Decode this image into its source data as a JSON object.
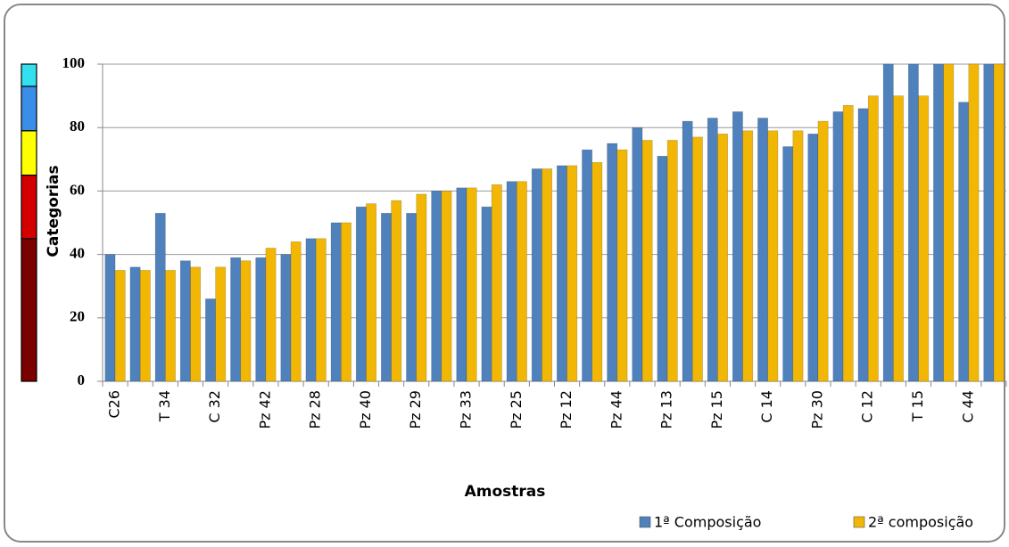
{
  "chart_data": {
    "type": "bar",
    "x_label": "Amostras",
    "y_label": "Categorias",
    "categories": [
      "C26",
      null,
      "T 34",
      null,
      "C 32",
      null,
      "Pz 42",
      null,
      "Pz 28",
      null,
      "Pz 40",
      null,
      "Pz 29",
      null,
      "Pz 33",
      null,
      "Pz 25",
      null,
      "Pz 12",
      null,
      "Pz 44",
      null,
      "Pz 13",
      null,
      "Pz 15",
      null,
      "C 14",
      null,
      "Pz 30",
      null,
      "C 12",
      null,
      "T 15",
      null,
      "C 44",
      null
    ],
    "series": [
      {
        "name": "1ª Composição",
        "color": "#4f81bd",
        "values": [
          40,
          36,
          53,
          38,
          26,
          39,
          39,
          40,
          45,
          50,
          55,
          53,
          53,
          60,
          61,
          55,
          63,
          67,
          68,
          73,
          75,
          80,
          71,
          82,
          83,
          85,
          83,
          74,
          78,
          85,
          86,
          100,
          100,
          100,
          88,
          100
        ]
      },
      {
        "name": "2ª composição",
        "color": "#f2b705",
        "values": [
          35,
          35,
          35,
          36,
          36,
          38,
          42,
          44,
          45,
          50,
          56,
          57,
          59,
          60,
          61,
          62,
          63,
          67,
          68,
          69,
          73,
          76,
          76,
          77,
          78,
          79,
          79,
          79,
          82,
          87,
          90,
          90,
          90,
          100,
          100,
          100
        ]
      }
    ],
    "ylim": [
      0,
      100
    ],
    "yticks": [
      0,
      20,
      40,
      60,
      80,
      100
    ],
    "grid": true,
    "category_bands": [
      {
        "from": 0,
        "to": 45,
        "color": "#7b0000"
      },
      {
        "from": 45,
        "to": 65,
        "color": "#d40000"
      },
      {
        "from": 65,
        "to": 79,
        "color": "#ffff00"
      },
      {
        "from": 79,
        "to": 93,
        "color": "#3b8ee8"
      },
      {
        "from": 93,
        "to": 100,
        "color": "#33e0f0"
      }
    ],
    "legend": "bottom-right"
  }
}
